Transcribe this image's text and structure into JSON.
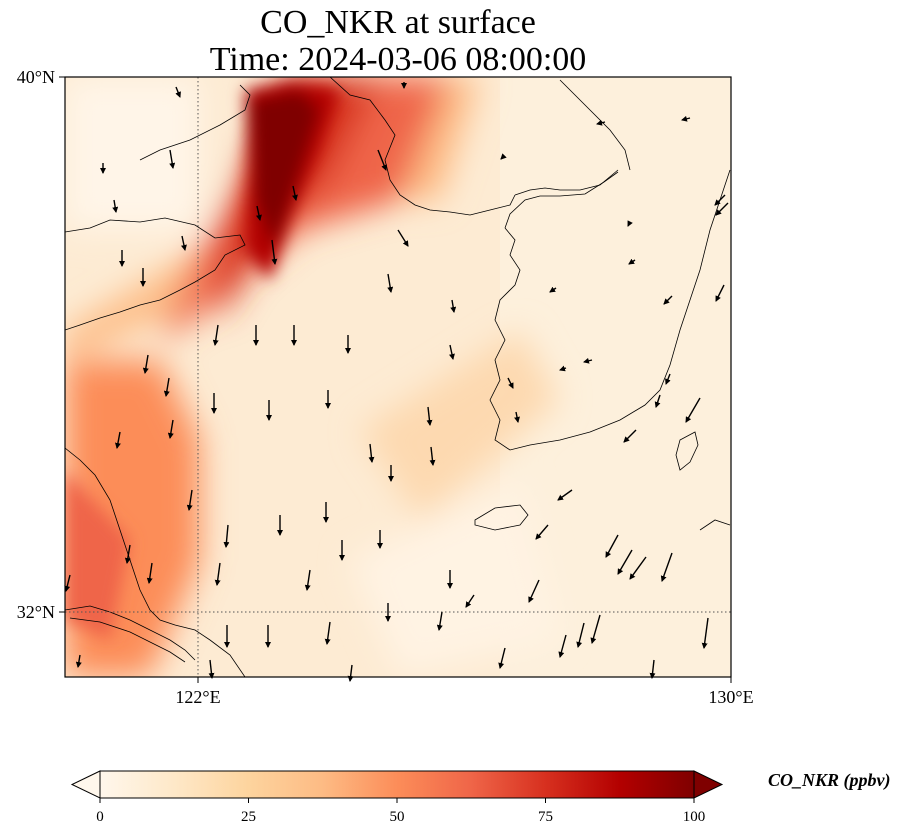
{
  "title": {
    "line1": "CO_NKR at surface",
    "line2": "Time: 2024-03-06 08:00:00"
  },
  "axes": {
    "lat_labels": [
      "40°N",
      "32°N"
    ],
    "lon_labels": [
      "122°E",
      "130°E"
    ]
  },
  "map_extent": {
    "lon": [
      120,
      130
    ],
    "lat": [
      31,
      40
    ]
  },
  "gridlines": {
    "lons": [
      122,
      130
    ],
    "lats": [
      32,
      40
    ]
  },
  "colorbar": {
    "label": "CO_NKR (ppbv)",
    "ticks": [
      "0",
      "25",
      "50",
      "75",
      "100"
    ],
    "min": 0,
    "max": 100,
    "colormap": "OrRd",
    "colors": [
      "#fff7ec",
      "#fee8c8",
      "#fdd49e",
      "#fdbb84",
      "#fc8d59",
      "#ef6548",
      "#d7301f",
      "#b30000",
      "#7f0000"
    ],
    "extend": "both"
  }
}
